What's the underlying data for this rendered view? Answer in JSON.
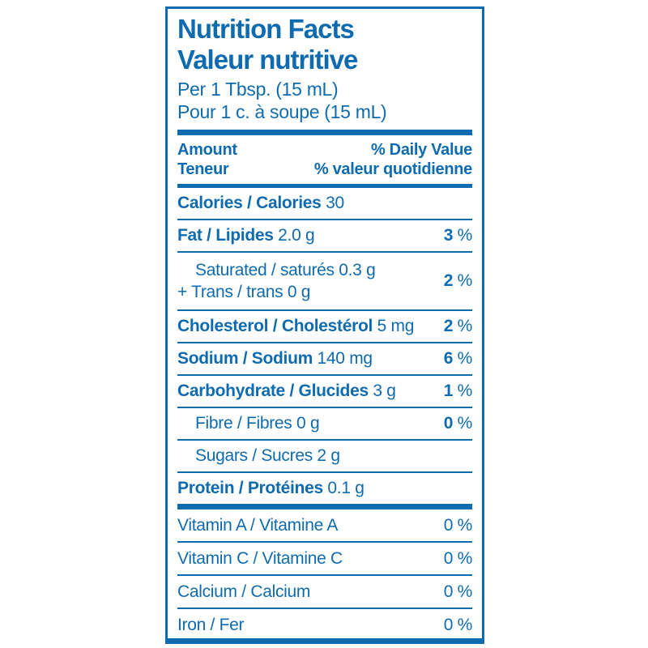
{
  "colors": {
    "blue": "#0F6BB0",
    "background": "#FFFFFF"
  },
  "label": {
    "title_en": "Nutrition Facts",
    "title_fr": "Valeur nutritive",
    "serving_en": "Per 1 Tbsp. (15 mL)",
    "serving_fr": "Pour 1 c. à soupe (15 mL)"
  },
  "header": {
    "amount_en": "Amount",
    "amount_fr": "Teneur",
    "daily_value_en": "% Daily Value",
    "daily_value_fr": "% valeur quotidienne"
  },
  "rows": {
    "calories": {
      "bold": "Calories / Calories",
      "value": "30"
    },
    "fat": {
      "bold": "Fat / Lipides",
      "value": "2.0 g",
      "dv": "3",
      "sym": "%"
    },
    "saturated": {
      "line1": "Saturated / saturés 0.3 g",
      "line2": "+ Trans / trans 0 g",
      "dv": "2",
      "sym": "%"
    },
    "cholesterol": {
      "bold": "Cholesterol / Cholestérol",
      "value": "5 mg",
      "dv": "2",
      "sym": "%"
    },
    "sodium": {
      "bold": "Sodium / Sodium",
      "value": "140 mg",
      "dv": "6",
      "sym": "%"
    },
    "carbohydrate": {
      "bold": "Carbohydrate / Glucides",
      "value": "3 g",
      "dv": "1",
      "sym": "%"
    },
    "fibre": {
      "text": "Fibre / Fibres 0 g",
      "dv": "0",
      "sym": "%"
    },
    "sugars": {
      "text": "Sugars / Sucres 2 g"
    },
    "protein": {
      "bold": "Protein / Protéines",
      "value": "0.1 g"
    }
  },
  "micronutrients": {
    "vitamin_a": {
      "text": "Vitamin A / Vitamine A",
      "dv": "0",
      "sym": "%"
    },
    "vitamin_c": {
      "text": "Vitamin C / Vitamine C",
      "dv": "0",
      "sym": "%"
    },
    "calcium": {
      "text": "Calcium / Calcium",
      "dv": "0",
      "sym": "%"
    },
    "iron": {
      "text": "Iron / Fer",
      "dv": "0",
      "sym": "%"
    }
  }
}
